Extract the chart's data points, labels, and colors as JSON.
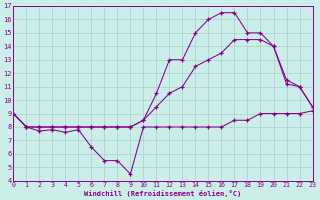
{
  "xlabel": "Windchill (Refroidissement éolien,°C)",
  "bg_color": "#cceee8",
  "line_color": "#880088",
  "grid_color": "#aacccc",
  "xmin": 0,
  "xmax": 23,
  "ymin": 4,
  "ymax": 17,
  "line1_x": [
    0,
    1,
    2,
    3,
    4,
    5,
    6,
    7,
    8,
    9,
    10,
    11,
    12,
    13,
    14,
    15,
    16,
    17,
    18,
    19,
    20,
    21,
    22,
    23
  ],
  "line1_y": [
    9,
    8,
    7.7,
    7.8,
    7.6,
    7.8,
    6.5,
    5.5,
    5.5,
    4.5,
    8,
    8,
    8,
    8,
    8,
    8,
    8,
    8.5,
    8.5,
    9,
    9,
    9,
    9,
    9.2
  ],
  "line2_x": [
    0,
    1,
    2,
    3,
    4,
    5,
    6,
    7,
    8,
    9,
    10,
    11,
    12,
    13,
    14,
    15,
    16,
    17,
    18,
    19,
    20,
    21,
    22,
    23
  ],
  "line2_y": [
    9,
    8,
    8,
    8,
    8,
    8,
    8,
    8,
    8,
    8,
    8.5,
    10.5,
    13,
    13,
    15,
    16,
    16.5,
    16.5,
    15,
    15,
    14,
    11.2,
    11.0,
    9.5
  ],
  "line3_x": [
    0,
    1,
    2,
    3,
    4,
    5,
    6,
    7,
    8,
    9,
    10,
    11,
    12,
    13,
    14,
    15,
    16,
    17,
    18,
    19,
    20,
    21,
    22,
    23
  ],
  "line3_y": [
    9,
    8,
    8,
    8,
    8,
    8,
    8,
    8,
    8,
    8,
    8.5,
    9.5,
    10.5,
    11.0,
    12.5,
    13,
    13.5,
    14.5,
    14.5,
    14.5,
    14.0,
    11.5,
    11.0,
    9.5
  ],
  "yticks": [
    4,
    5,
    6,
    7,
    8,
    9,
    10,
    11,
    12,
    13,
    14,
    15,
    16,
    17
  ],
  "xticks": [
    0,
    1,
    2,
    3,
    4,
    5,
    6,
    7,
    8,
    9,
    10,
    11,
    12,
    13,
    14,
    15,
    16,
    17,
    18,
    19,
    20,
    21,
    22,
    23
  ]
}
